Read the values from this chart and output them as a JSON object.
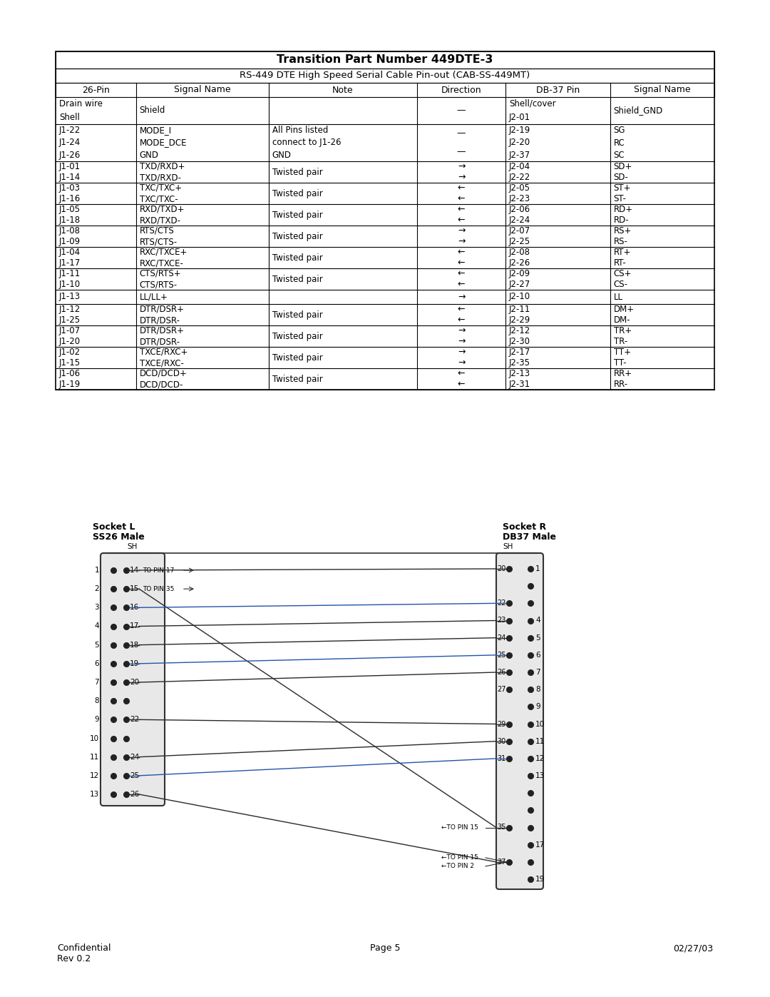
{
  "title": "Transition Part Number 449DTE-3",
  "subtitle": "RS-449 DTE High Speed Serial Cable Pin-out (CAB-SS-449MT)",
  "col_headers": [
    "26-Pin",
    "Signal Name",
    "Note",
    "Direction",
    "DB-37 Pin",
    "Signal Name"
  ],
  "rows": [
    [
      "Drain wire\nShell",
      "Shield",
      "",
      "—",
      "Shell/cover\nJ2-01",
      "Shield_GND"
    ],
    [
      "J1-22\nJ1-24\nJ1-26",
      "MODE_I\nMODE_DCE\nGND",
      "All Pins listed\nconnect to J1-26\nGND",
      "—\n—",
      "J2-19\nJ2-20\nJ2-37",
      "SG\nRC\nSC"
    ],
    [
      "J1-01\nJ1-14",
      "TXD/RXD+\nTXD/RXD-",
      "Twisted pair",
      "→\n→",
      "J2-04\nJ2-22",
      "SD+\nSD-"
    ],
    [
      "J1-03\nJ1-16",
      "TXC/TXC+\nTXC/TXC-",
      "Twisted pair",
      "←\n←",
      "J2-05\nJ2-23",
      "ST+\nST-"
    ],
    [
      "J1-05\nJ1-18",
      "RXD/TXD+\nRXD/TXD-",
      "Twisted pair",
      "←\n←",
      "J2-06\nJ2-24",
      "RD+\nRD-"
    ],
    [
      "J1-08\nJ1-09",
      "RTS/CTS\nRTS/CTS-",
      "Twisted pair",
      "→\n→",
      "J2-07\nJ2-25",
      "RS+\nRS-"
    ],
    [
      "J1-04\nJ1-17",
      "RXC/TXCE+\nRXC/TXCE-",
      "Twisted pair",
      "←\n←",
      "J2-08\nJ2-26",
      "RT+\nRT-"
    ],
    [
      "J1-11\nJ1-10",
      "CTS/RTS+\nCTS/RTS-",
      "Twisted pair",
      "←\n←",
      "J2-09\nJ2-27",
      "CS+\nCS-"
    ],
    [
      "J1-13",
      "LL/LL+",
      "",
      "→",
      "J2-10",
      "LL"
    ],
    [
      "J1-12\nJ1-25",
      "DTR/DSR+\nDTR/DSR-",
      "Twisted pair",
      "←\n←",
      "J2-11\nJ2-29",
      "DM+\nDM-"
    ],
    [
      "J1-07\nJ1-20",
      "DTR/DSR+\nDTR/DSR-",
      "Twisted pair",
      "→\n→",
      "J2-12\nJ2-30",
      "TR+\nTR-"
    ],
    [
      "J1-02\nJ1-15",
      "TXCE/RXC+\nTXCE/RXC-",
      "Twisted pair",
      "→\n→",
      "J2-17\nJ2-35",
      "TT+\nTT-"
    ],
    [
      "J1-06\nJ1-19",
      "DCD/DCD+\nDCD/DCD-",
      "Twisted pair",
      "←\n←",
      "J2-13\nJ2-31",
      "RR+\nRR-"
    ]
  ],
  "footer_left": "Confidential\nRev 0.2",
  "footer_center": "Page 5",
  "footer_right": "02/27/03",
  "bg_color": "#ffffff",
  "text_color": "#000000"
}
